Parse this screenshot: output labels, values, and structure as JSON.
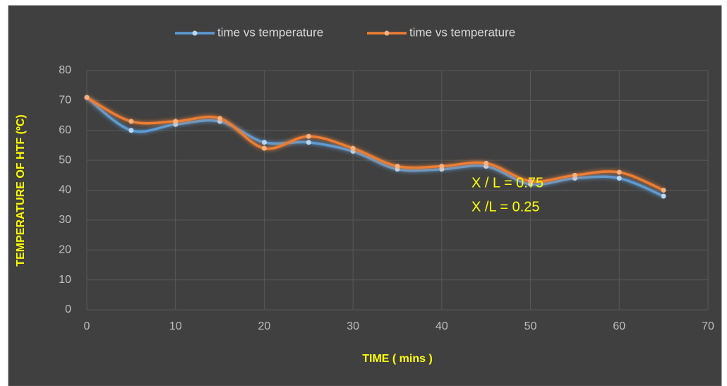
{
  "chart_data": {
    "type": "line",
    "x_label": "TIME ( mins )",
    "y_label": "TEMPERATURE OF HTF (ºC)",
    "x": [
      0,
      5,
      10,
      15,
      20,
      25,
      30,
      35,
      40,
      45,
      50,
      55,
      60,
      65
    ],
    "series": [
      {
        "name": "time vs temperature",
        "color": "#5b9bd5",
        "values": [
          71,
          60,
          62,
          63,
          56,
          56,
          53,
          47,
          47,
          48,
          42,
          44,
          44,
          38
        ]
      },
      {
        "name": "time vs temperature",
        "color": "#ed7d31",
        "values": [
          71,
          63,
          63,
          64,
          54,
          58,
          54,
          48,
          48,
          49,
          43,
          45,
          46,
          40
        ]
      }
    ],
    "xlim": [
      0,
      70
    ],
    "xticks": [
      0,
      10,
      20,
      30,
      40,
      50,
      60,
      70
    ],
    "ylim": [
      0,
      80
    ],
    "yticks": [
      0,
      10,
      20,
      30,
      40,
      50,
      60,
      70,
      80
    ],
    "grid": true,
    "smooth": true,
    "legend": "top",
    "annotations": [
      "X / L = 0.75",
      "X /L = 0.25"
    ]
  }
}
